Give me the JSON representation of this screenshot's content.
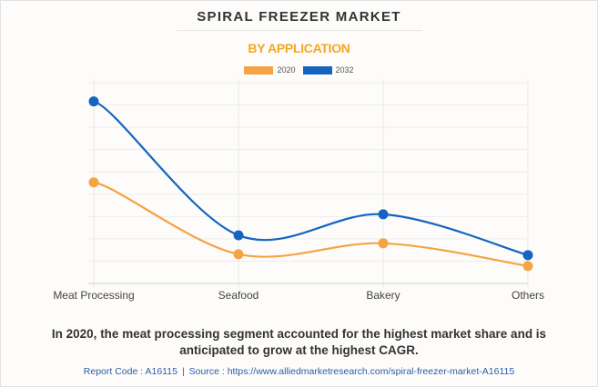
{
  "header": {
    "title": "SPIRAL FREEZER MARKET",
    "subtitle": "BY APPLICATION"
  },
  "chart_data": {
    "type": "line",
    "title": "SPIRAL FREEZER MARKET",
    "subtitle": "BY APPLICATION",
    "xlabel": "",
    "ylabel": "",
    "categories": [
      "Meat Processing",
      "Seafood",
      "Bakery",
      "Others"
    ],
    "series": [
      {
        "name": "2020",
        "color": "#F4A443",
        "values": [
          4.53,
          1.31,
          1.8,
          0.78
        ]
      },
      {
        "name": "2032",
        "color": "#1565C0",
        "values": [
          8.16,
          2.16,
          3.1,
          1.27
        ]
      }
    ],
    "ylim": [
      0,
      9
    ],
    "y_units": "relative (gridline units; no y-axis labels shown)",
    "grid": true,
    "y_gridlines": 9,
    "legend_position": "top-center",
    "smooth": true
  },
  "caption": "In 2020, the meat processing segment accounted for the highest market share and is anticipated to grow at the highest CAGR.",
  "footer": {
    "report_code": "Report Code : A16115",
    "separator": "|",
    "source": "Source : https://www.alliedmarketresearch.com/spiral-freezer-market-A16115"
  }
}
